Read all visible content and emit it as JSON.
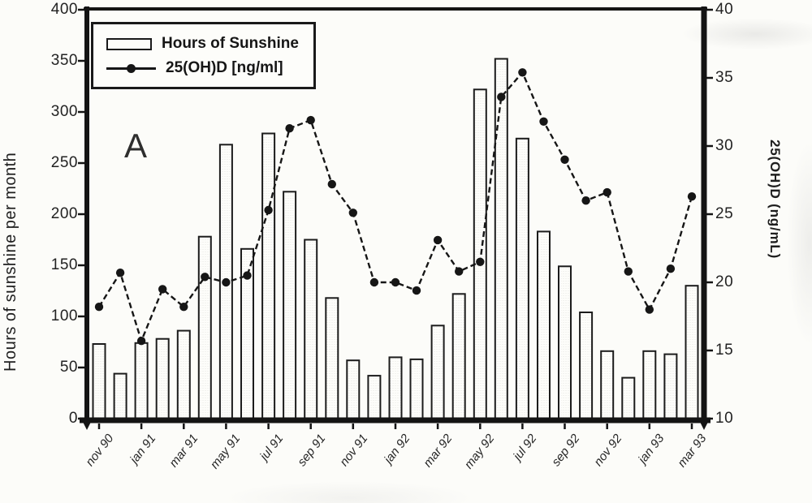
{
  "panel_label": "A",
  "legend": {
    "bar_label": "Hours of Sunshine",
    "line_label": "25(OH)D [ng/ml]"
  },
  "left_axis": {
    "title": "Hours of sunshine per month",
    "min": 0,
    "max": 400,
    "ticks": [
      400,
      350,
      300,
      250,
      200,
      150,
      100,
      50,
      0
    ]
  },
  "right_axis": {
    "title": "25(OH)D (ng/mL)",
    "min": 10,
    "max": 40,
    "ticks": [
      40,
      35,
      30,
      25,
      20,
      15,
      10
    ]
  },
  "x_axis": {
    "tick_labels": [
      "nov 90",
      "jan 91",
      "mar 91",
      "may 91",
      "jul 91",
      "sep 91",
      "nov 91",
      "jan 92",
      "mar 92",
      "may 92",
      "jul 92",
      "sep 92",
      "nov 92",
      "jan 93",
      "mar 93"
    ],
    "labels_shown_every": 2
  },
  "chart_data": {
    "type": "bar+line combo",
    "categories": [
      "nov 90",
      "dec 90",
      "jan 91",
      "feb 91",
      "mar 91",
      "apr 91",
      "may 91",
      "jun 91",
      "jul 91",
      "aug 91",
      "sep 91",
      "oct 91",
      "nov 91",
      "dec 91",
      "jan 92",
      "feb 92",
      "mar 92",
      "apr 92",
      "may 92",
      "jun 92",
      "jul 92",
      "aug 92",
      "sep 92",
      "oct 92",
      "nov 92",
      "dec 92",
      "jan 93",
      "feb 93",
      "mar 93"
    ],
    "series": [
      {
        "name": "Hours of Sunshine",
        "type": "bar",
        "axis": "left",
        "unit": "hours",
        "values": [
          73,
          44,
          74,
          78,
          86,
          178,
          268,
          166,
          279,
          222,
          175,
          118,
          57,
          42,
          60,
          58,
          91,
          122,
          322,
          352,
          274,
          183,
          149,
          104,
          66,
          40,
          66,
          63,
          130
        ]
      },
      {
        "name": "25(OH)D [ng/ml]",
        "type": "line",
        "axis": "right",
        "unit": "ng/ml",
        "values": [
          18.2,
          20.7,
          15.7,
          19.5,
          18.2,
          20.4,
          20.0,
          20.5,
          25.3,
          31.3,
          31.9,
          27.2,
          25.1,
          20.0,
          20.0,
          19.4,
          23.1,
          20.8,
          21.5,
          33.6,
          35.4,
          31.8,
          29.0,
          26.0,
          26.6,
          20.8,
          18.0,
          21.0,
          26.3
        ]
      }
    ],
    "left_axis_range": [
      0,
      400
    ],
    "right_axis_range": [
      10,
      40
    ],
    "grid": false,
    "legend_position": "top-left inside plot",
    "colors": {
      "ink": "#1a1a1a",
      "bar_fill": "#fdfdfa",
      "background": "#fcfcf9"
    }
  }
}
